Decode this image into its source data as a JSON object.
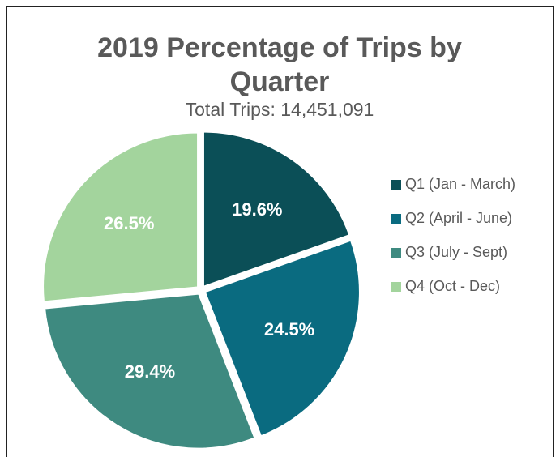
{
  "chart_data": {
    "type": "pie",
    "title": "2019 Percentage of Trips by Quarter",
    "subtitle": "Total Trips: 14,451,091",
    "categories": [
      "Q1 (Jan - March)",
      "Q2 (April - June)",
      "Q3 (July - Sept)",
      "Q4 (Oct - Dec)"
    ],
    "values": [
      19.6,
      24.5,
      29.4,
      26.5
    ],
    "value_labels": [
      "19.6%",
      "24.5%",
      "29.4%",
      "26.5%"
    ],
    "colors": [
      "#0b4f57",
      "#0a6b80",
      "#3e8a80",
      "#a3d49d"
    ],
    "legend": "right"
  }
}
